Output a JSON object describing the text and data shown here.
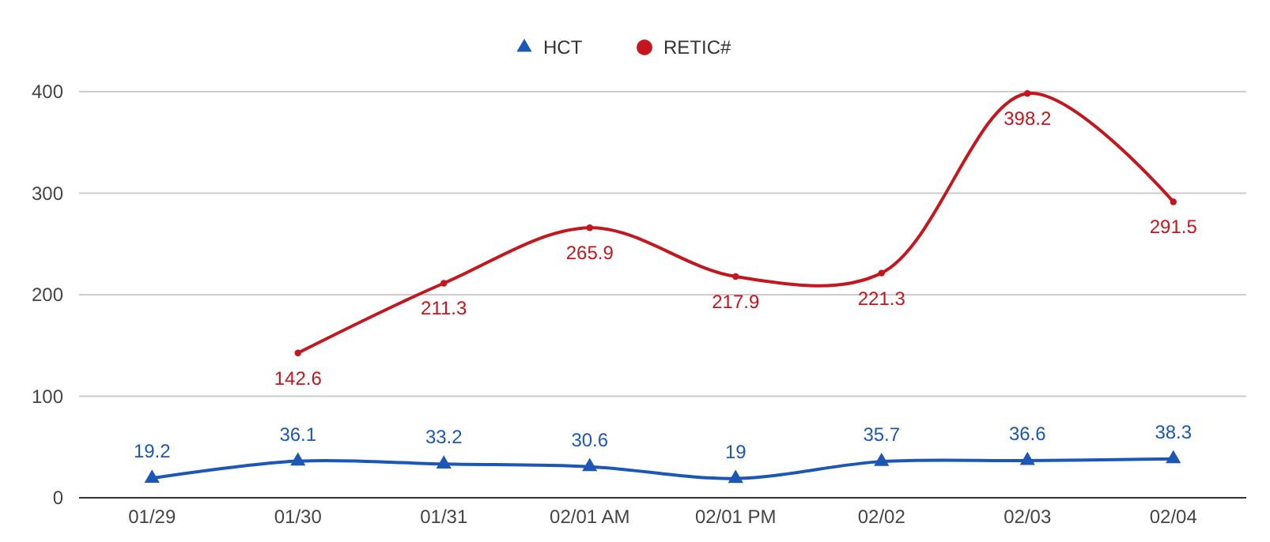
{
  "chart_data": {
    "type": "line",
    "categories": [
      "01/29",
      "01/30",
      "01/31",
      "02/01 AM",
      "02/01 PM",
      "02/02",
      "02/03",
      "02/04"
    ],
    "series": [
      {
        "name": "HCT",
        "color": "#1c57b8",
        "marker": "triangle",
        "values": [
          19.2,
          36.1,
          33.2,
          30.6,
          19,
          35.7,
          36.6,
          38.3
        ]
      },
      {
        "name": "RETIC#",
        "color": "#c4161c",
        "marker": "circle",
        "values": [
          null,
          142.6,
          211.3,
          265.9,
          217.9,
          221.3,
          398.2,
          291.5
        ]
      }
    ],
    "ylim": [
      0,
      400
    ],
    "yticks": [
      0,
      100,
      200,
      300,
      400
    ],
    "grid": "y",
    "legend": "top",
    "data_labels": true
  }
}
